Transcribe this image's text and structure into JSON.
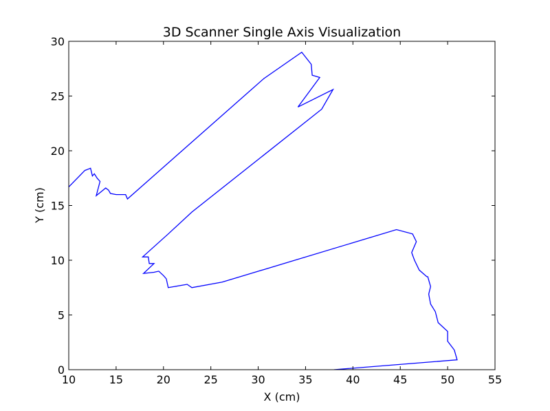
{
  "chart_data": {
    "type": "line",
    "title": "3D Scanner Single Axis Visualization",
    "xlabel": "X (cm)",
    "ylabel": "Y (cm)",
    "xlim": [
      10,
      55
    ],
    "ylim": [
      0,
      30
    ],
    "xticks": [
      10,
      15,
      20,
      25,
      30,
      35,
      40,
      45,
      50,
      55
    ],
    "yticks": [
      0,
      5,
      10,
      15,
      20,
      25,
      30
    ],
    "grid": false,
    "line_color": "#0000ff",
    "series": [
      {
        "x": [
          38.0,
          51.0,
          50.7,
          50.0,
          50.0,
          49.0,
          48.7,
          48.2,
          48.0,
          48.2,
          47.9,
          47.8,
          47.0,
          46.5,
          46.2,
          46.7,
          46.3,
          44.6,
          26.2,
          23.0,
          22.5,
          20.5,
          20.3,
          20.0,
          19.5,
          19.0,
          17.9,
          19.0,
          18.5,
          18.4,
          17.8,
          20.5,
          23.0,
          36.7,
          37.9,
          34.2,
          36.5,
          35.7,
          35.6,
          34.6,
          30.6,
          16.2,
          16.0,
          15.0,
          14.4,
          14.2,
          13.9,
          12.9,
          13.3,
          13.0,
          12.7,
          12.5,
          12.3,
          11.7,
          10.0
        ],
        "y": [
          0.0,
          0.9,
          1.8,
          2.6,
          3.5,
          4.3,
          5.3,
          6.0,
          6.9,
          7.6,
          8.5,
          8.5,
          9.1,
          10.0,
          10.7,
          11.7,
          12.4,
          12.8,
          8.0,
          7.5,
          7.8,
          7.5,
          8.3,
          8.6,
          9.0,
          8.9,
          8.8,
          9.7,
          9.7,
          10.3,
          10.3,
          12.4,
          14.4,
          23.8,
          25.6,
          24.0,
          26.7,
          26.9,
          27.9,
          29.0,
          26.6,
          15.6,
          16.0,
          16.0,
          16.1,
          16.4,
          16.6,
          15.9,
          17.2,
          17.5,
          17.9,
          17.7,
          18.4,
          18.2,
          16.7
        ]
      }
    ]
  }
}
